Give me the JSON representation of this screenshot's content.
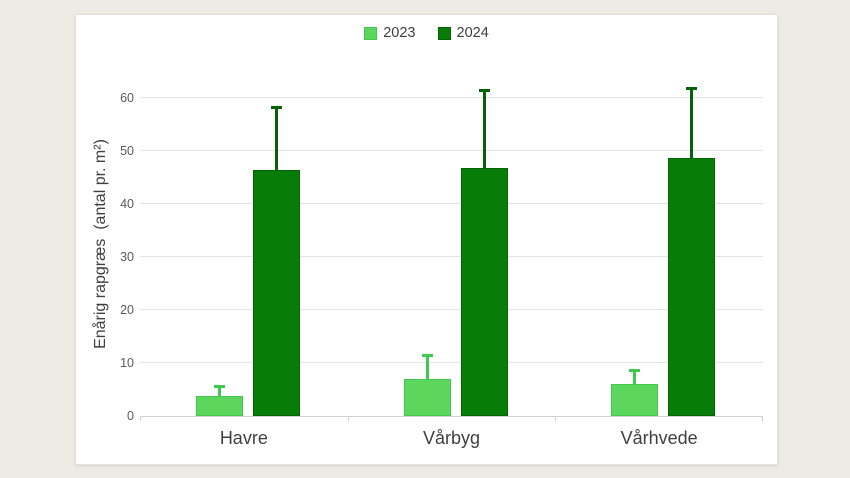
{
  "colors": {
    "background": "#ecece4",
    "panel": "#ffffff",
    "grid": "#e4e4e4",
    "axis": "#d2d2d2",
    "label_text": "#3f3f3f",
    "tick_text": "#595959"
  },
  "chart_data": {
    "type": "bar",
    "title": "",
    "categories": [
      "Havre",
      "Vårbyg",
      "Vårhvede"
    ],
    "series": [
      {
        "name": "2023",
        "color": "#5cd65c",
        "border_color": "#3fc94f",
        "values": [
          3.8,
          7,
          6
        ],
        "error_up": [
          1.7,
          4.3,
          2.5
        ]
      },
      {
        "name": "2024",
        "color": "#077d07",
        "border_color": "#056305",
        "values": [
          46.3,
          46.8,
          48.7
        ],
        "error_up": [
          11.8,
          14.5,
          13
        ]
      }
    ],
    "xlabel": "",
    "ylabel": "Enårig rapgræs  (antal pr. m²)",
    "ylim": [
      0,
      60
    ],
    "yticks": [
      0,
      10,
      20,
      30,
      40,
      50,
      60
    ],
    "grid": true,
    "legend_position": "top-center",
    "error_bars": "upper-only"
  }
}
